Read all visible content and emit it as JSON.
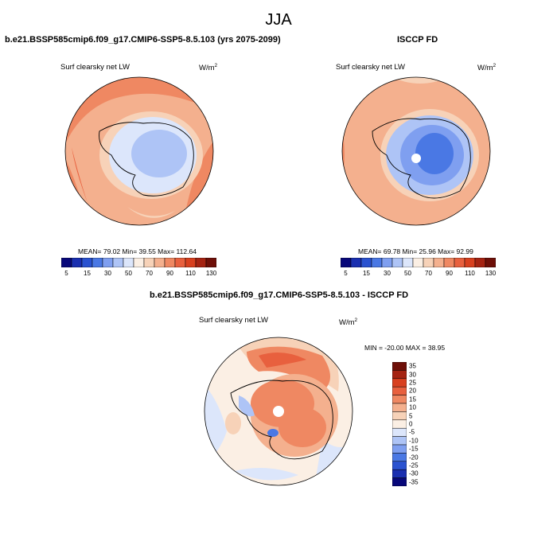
{
  "title": "JJA",
  "panels": [
    {
      "title": "b.e21.BSSP585cmip6.f09_g17.CMIP6-SSP5-8.5.103 (yrs 2075-2099)",
      "variable": "Surf clearsky net LW",
      "units_base": "W/m",
      "units_exp": "2",
      "stats": "MEAN=  79.02  Min=  39.55  Max=  112.64"
    },
    {
      "title": "ISCCP FD",
      "variable": "Surf clearsky net LW",
      "units_base": "W/m",
      "units_exp": "2",
      "stats": "MEAN=  69.78  Min=  25.96  Max=  92.99"
    },
    {
      "title": "b.e21.BSSP585cmip6.f09_g17.CMIP6-SSP5-8.5.103 - ISCCP FD",
      "variable": "Surf clearsky net LW",
      "units_base": "W/m",
      "units_exp": "2",
      "stats": "MIN = -20.00 MAX =  38.95"
    }
  ],
  "colorbar_abs": {
    "colors": [
      "#08087a",
      "#1a2fb0",
      "#2a52d0",
      "#4a78e4",
      "#7f9ff0",
      "#aec4f6",
      "#dce6fb",
      "#fbefe4",
      "#f7d2b8",
      "#f4b08e",
      "#ef8862",
      "#e8603e",
      "#d8401f",
      "#a52312",
      "#6e0f08"
    ],
    "labels": [
      "5",
      "15",
      "30",
      "50",
      "70",
      "90",
      "110",
      "130"
    ]
  },
  "colorbar_diff": {
    "colors": [
      "#6e0f08",
      "#a52312",
      "#d8401f",
      "#e8603e",
      "#ef8862",
      "#f4b08e",
      "#f7d2b8",
      "#fbefe4",
      "#dce6fb",
      "#aec4f6",
      "#7f9ff0",
      "#4a78e4",
      "#2a52d0",
      "#1a2fb0",
      "#08087a"
    ],
    "labels": [
      "35",
      "30",
      "25",
      "20",
      "15",
      "10",
      "5",
      "0",
      "-5",
      "-10",
      "-15",
      "-20",
      "-25",
      "-30",
      "-35"
    ]
  }
}
